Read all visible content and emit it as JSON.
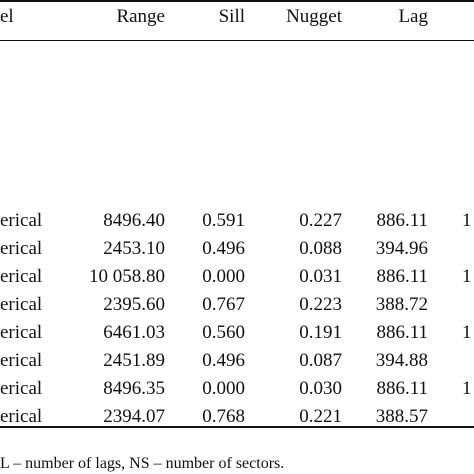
{
  "table": {
    "headers": {
      "model": "el",
      "range": "Range",
      "sill": "Sill",
      "nugget": "Nugget",
      "lag": "Lag"
    },
    "rows": [
      {
        "model": "erical",
        "range": "8496.40",
        "sill": "0.591",
        "nugget": "0.227",
        "lag": "886.11",
        "extra": "1"
      },
      {
        "model": "erical",
        "range": "2453.10",
        "sill": "0.496",
        "nugget": "0.088",
        "lag": "394.96",
        "extra": ""
      },
      {
        "model": "erical",
        "range": "10 058.80",
        "sill": "0.000",
        "nugget": "0.031",
        "lag": "886.11",
        "extra": "1"
      },
      {
        "model": "erical",
        "range": "2395.60",
        "sill": "0.767",
        "nugget": "0.223",
        "lag": "388.72",
        "extra": ""
      },
      {
        "model": "erical",
        "range": "6461.03",
        "sill": "0.560",
        "nugget": "0.191",
        "lag": "886.11",
        "extra": "1"
      },
      {
        "model": "erical",
        "range": "2451.89",
        "sill": "0.496",
        "nugget": "0.087",
        "lag": "394.88",
        "extra": ""
      },
      {
        "model": "erical",
        "range": "8496.35",
        "sill": "0.000",
        "nugget": "0.030",
        "lag": "886.11",
        "extra": "1"
      },
      {
        "model": "erical",
        "range": "2394.07",
        "sill": "0.768",
        "nugget": "0.221",
        "lag": "388.57",
        "extra": ""
      }
    ]
  },
  "footnote": "L – number of lags, NS – number of sectors."
}
